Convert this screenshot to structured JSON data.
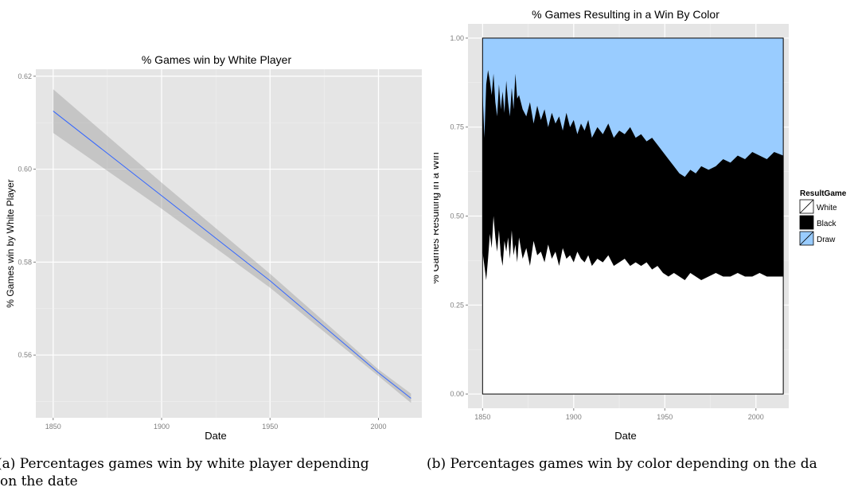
{
  "captions": {
    "a_line1": "(a) Percentages games win by white player depending",
    "a_line2": "on the date",
    "b": "(b) Percentages games win by color depending on the da"
  },
  "chart_data": [
    {
      "type": "line",
      "title": "% Games win by White Player",
      "xlabel": "Date",
      "ylabel": "% Games win by White Player",
      "xlim": [
        1842,
        2020
      ],
      "ylim": [
        0.5465,
        0.6215
      ],
      "x_ticks": [
        1850,
        1900,
        1950,
        2000
      ],
      "x_tick_labels": [
        "1850",
        "1900",
        "1950",
        "2000"
      ],
      "y_ticks": [
        0.56,
        0.58,
        0.6,
        0.62
      ],
      "y_tick_labels": [
        "0.56",
        "0.58",
        "0.60",
        "0.62"
      ],
      "grid": true,
      "line_color": "#3366ff",
      "ribbon_color": "#999999",
      "series": [
        {
          "x": [
            1850,
            1900,
            1950,
            2000,
            2015
          ],
          "y": [
            0.6125,
            0.5943,
            0.576,
            0.5562,
            0.5507
          ],
          "lower": [
            0.6078,
            0.5915,
            0.5745,
            0.5555,
            0.5497
          ],
          "upper": [
            0.6172,
            0.5971,
            0.5775,
            0.5569,
            0.5517
          ]
        }
      ]
    },
    {
      "type": "area",
      "title": "% Games Resulting in a Win By Color",
      "xlabel": "Date",
      "ylabel": "% Games Resulting in a Win",
      "xlim": [
        1842,
        2018
      ],
      "ylim": [
        -0.04,
        1.04
      ],
      "x_ticks": [
        1850,
        1900,
        1950,
        2000
      ],
      "x_tick_labels": [
        "1850",
        "1900",
        "1950",
        "2000"
      ],
      "y_ticks": [
        0,
        0.25,
        0.5,
        0.75,
        1
      ],
      "y_tick_labels": [
        "0.00",
        "0.25",
        "0.50",
        "0.75",
        "1.00"
      ],
      "grid": true,
      "legend": {
        "title": "ResultGame",
        "placement": "right",
        "items": [
          {
            "label": "White",
            "color": "#ffffff"
          },
          {
            "label": "Black",
            "color": "#000000"
          },
          {
            "label": "Draw",
            "color": "#99ccff"
          }
        ]
      },
      "x": [
        1850,
        1851,
        1852,
        1853,
        1854,
        1855,
        1856,
        1857,
        1858,
        1859,
        1860,
        1861,
        1862,
        1863,
        1864,
        1865,
        1866,
        1867,
        1868,
        1869,
        1870,
        1872,
        1874,
        1876,
        1878,
        1880,
        1882,
        1884,
        1886,
        1888,
        1890,
        1892,
        1894,
        1896,
        1898,
        1900,
        1902,
        1904,
        1906,
        1908,
        1910,
        1913,
        1916,
        1919,
        1922,
        1925,
        1928,
        1931,
        1934,
        1937,
        1940,
        1943,
        1946,
        1949,
        1952,
        1955,
        1958,
        1961,
        1964,
        1967,
        1970,
        1974,
        1978,
        1982,
        1986,
        1990,
        1994,
        1998,
        2002,
        2006,
        2010,
        2015
      ],
      "white_top": [
        0.4,
        0.36,
        0.32,
        0.38,
        0.45,
        0.41,
        0.5,
        0.44,
        0.4,
        0.46,
        0.39,
        0.36,
        0.43,
        0.4,
        0.44,
        0.38,
        0.46,
        0.39,
        0.42,
        0.37,
        0.44,
        0.38,
        0.41,
        0.36,
        0.43,
        0.39,
        0.4,
        0.37,
        0.42,
        0.38,
        0.4,
        0.36,
        0.41,
        0.38,
        0.39,
        0.37,
        0.4,
        0.38,
        0.37,
        0.39,
        0.36,
        0.38,
        0.37,
        0.39,
        0.36,
        0.37,
        0.38,
        0.36,
        0.37,
        0.36,
        0.37,
        0.35,
        0.36,
        0.34,
        0.33,
        0.34,
        0.33,
        0.32,
        0.34,
        0.33,
        0.32,
        0.33,
        0.34,
        0.33,
        0.33,
        0.34,
        0.33,
        0.33,
        0.34,
        0.33,
        0.33,
        0.33
      ],
      "black_top": [
        0.85,
        0.72,
        0.87,
        0.91,
        0.88,
        0.84,
        0.9,
        0.82,
        0.78,
        0.87,
        0.8,
        0.85,
        0.79,
        0.88,
        0.82,
        0.78,
        0.86,
        0.8,
        0.9,
        0.83,
        0.84,
        0.8,
        0.78,
        0.82,
        0.76,
        0.81,
        0.77,
        0.8,
        0.75,
        0.79,
        0.76,
        0.78,
        0.74,
        0.79,
        0.75,
        0.77,
        0.73,
        0.76,
        0.74,
        0.77,
        0.72,
        0.75,
        0.73,
        0.76,
        0.72,
        0.74,
        0.73,
        0.75,
        0.72,
        0.73,
        0.71,
        0.72,
        0.7,
        0.68,
        0.66,
        0.64,
        0.62,
        0.61,
        0.63,
        0.62,
        0.64,
        0.63,
        0.64,
        0.66,
        0.65,
        0.67,
        0.66,
        0.68,
        0.67,
        0.66,
        0.68,
        0.67
      ]
    }
  ]
}
